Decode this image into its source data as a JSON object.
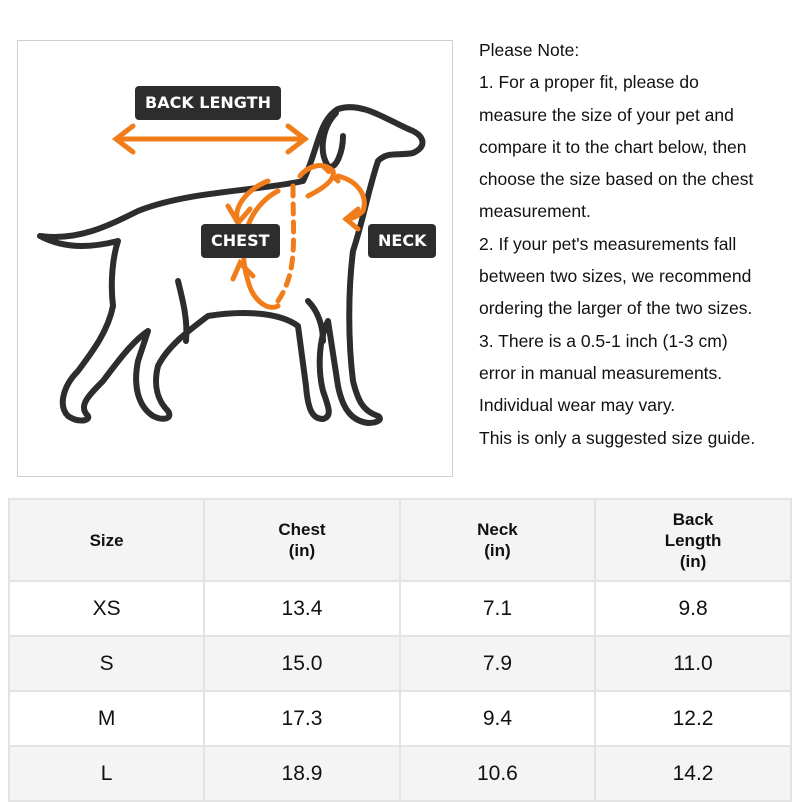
{
  "illustration": {
    "labels": {
      "back_length": "BACK LENGTH",
      "chest": "CHEST",
      "neck": "NECK"
    },
    "colors": {
      "arrow": "#f07d1a",
      "outline": "#2d2d2d"
    }
  },
  "note": {
    "lines": [
      "Please Note:",
      "1. For a proper fit, please do",
      "measure the size of your pet and",
      "compare it to the chart below, then",
      "choose the size based on the chest",
      "measurement.",
      "2. If your pet's measurements fall",
      "between two sizes, we recommend",
      "ordering the larger of the two sizes.",
      "3. There is a 0.5-1 inch (1-3 cm)",
      "error in manual measurements.",
      "Individual wear may vary.",
      "This is only a suggested size guide."
    ]
  },
  "table": {
    "headers": [
      [
        "Size"
      ],
      [
        "Chest",
        "(in)"
      ],
      [
        "Neck",
        "(in)"
      ],
      [
        "Back",
        "Length",
        "(in)"
      ]
    ],
    "rows": [
      [
        "XS",
        "13.4",
        "7.1",
        "9.8"
      ],
      [
        "S",
        "15.0",
        "7.9",
        "11.0"
      ],
      [
        "M",
        "17.3",
        "9.4",
        "12.2"
      ],
      [
        "L",
        "18.9",
        "10.6",
        "14.2"
      ]
    ]
  }
}
